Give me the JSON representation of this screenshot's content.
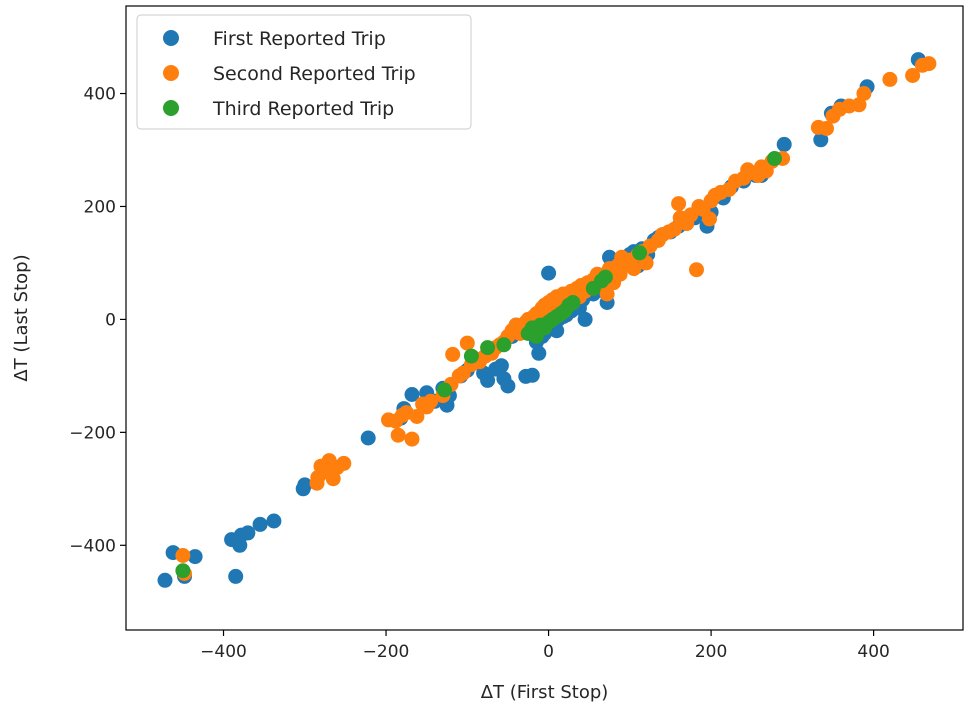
{
  "chart_data": {
    "type": "scatter",
    "title": "",
    "xlabel": "ΔT (First Stop)",
    "ylabel": "ΔT (Last Stop)",
    "xlim": [
      -520,
      510
    ],
    "ylim": [
      -550,
      555
    ],
    "xticks": [
      -400,
      -200,
      0,
      200,
      400
    ],
    "yticks": [
      -400,
      -200,
      0,
      200,
      400
    ],
    "xtick_labels": [
      "−400",
      "−200",
      "0",
      "200",
      "400"
    ],
    "ytick_labels": [
      "−400",
      "−200",
      "0",
      "200",
      "400"
    ],
    "grid": false,
    "legend_position": "top-left",
    "series": [
      {
        "name": "First Reported Trip",
        "color": "#1f77b4",
        "points": [
          [
            -472,
            -462
          ],
          [
            -462,
            -413
          ],
          [
            -448,
            -455
          ],
          [
            -435,
            -420
          ],
          [
            -390,
            -390
          ],
          [
            -385,
            -455
          ],
          [
            -380,
            -400
          ],
          [
            -378,
            -382
          ],
          [
            -370,
            -378
          ],
          [
            -355,
            -363
          ],
          [
            -338,
            -357
          ],
          [
            -302,
            -300
          ],
          [
            -300,
            -293
          ],
          [
            -222,
            -210
          ],
          [
            -182,
            -175
          ],
          [
            -178,
            -158
          ],
          [
            -168,
            -133
          ],
          [
            -150,
            -130
          ],
          [
            -140,
            -145
          ],
          [
            -130,
            -122
          ],
          [
            -125,
            -152
          ],
          [
            -122,
            -135
          ],
          [
            -108,
            -100
          ],
          [
            -100,
            -90
          ],
          [
            -90,
            -70
          ],
          [
            -80,
            -95
          ],
          [
            -75,
            -108
          ],
          [
            -70,
            -55
          ],
          [
            -65,
            -88
          ],
          [
            -58,
            -82
          ],
          [
            -55,
            -105
          ],
          [
            -50,
            -118
          ],
          [
            -45,
            -30
          ],
          [
            -40,
            -10
          ],
          [
            -35,
            -20
          ],
          [
            -28,
            -101
          ],
          [
            -25,
            -18
          ],
          [
            -20,
            -99
          ],
          [
            -15,
            -40
          ],
          [
            -12,
            -60
          ],
          [
            -8,
            -30
          ],
          [
            -5,
            -25
          ],
          [
            0,
            82
          ],
          [
            2,
            5
          ],
          [
            5,
            -10
          ],
          [
            8,
            -5
          ],
          [
            10,
            -20
          ],
          [
            12,
            0
          ],
          [
            15,
            10
          ],
          [
            18,
            5
          ],
          [
            20,
            20
          ],
          [
            22,
            8
          ],
          [
            25,
            25
          ],
          [
            28,
            15
          ],
          [
            30,
            30
          ],
          [
            35,
            40
          ],
          [
            38,
            20
          ],
          [
            40,
            50
          ],
          [
            42,
            35
          ],
          [
            45,
            0
          ],
          [
            50,
            60
          ],
          [
            52,
            55
          ],
          [
            55,
            45
          ],
          [
            58,
            65
          ],
          [
            60,
            70
          ],
          [
            62,
            60
          ],
          [
            65,
            75
          ],
          [
            68,
            50
          ],
          [
            70,
            80
          ],
          [
            72,
            30
          ],
          [
            75,
            110
          ],
          [
            78,
            95
          ],
          [
            80,
            85
          ],
          [
            85,
            90
          ],
          [
            88,
            100
          ],
          [
            92,
            105
          ],
          [
            95,
            110
          ],
          [
            100,
            115
          ],
          [
            105,
            120
          ],
          [
            110,
            95
          ],
          [
            115,
            125
          ],
          [
            118,
            105
          ],
          [
            122,
            115
          ],
          [
            130,
            140
          ],
          [
            135,
            145
          ],
          [
            140,
            150
          ],
          [
            150,
            155
          ],
          [
            160,
            165
          ],
          [
            170,
            170
          ],
          [
            180,
            180
          ],
          [
            195,
            165
          ],
          [
            200,
            190
          ],
          [
            215,
            215
          ],
          [
            225,
            235
          ],
          [
            240,
            245
          ],
          [
            255,
            255
          ],
          [
            262,
            255
          ],
          [
            290,
            310
          ],
          [
            335,
            318
          ],
          [
            348,
            365
          ],
          [
            360,
            378
          ],
          [
            392,
            412
          ],
          [
            455,
            460
          ]
        ]
      },
      {
        "name": "Second Reported Trip",
        "color": "#ff7f0e",
        "points": [
          [
            -450,
            -418
          ],
          [
            -448,
            -450
          ],
          [
            -285,
            -290
          ],
          [
            -284,
            -280
          ],
          [
            -280,
            -260
          ],
          [
            -275,
            -270
          ],
          [
            -270,
            -250
          ],
          [
            -265,
            -282
          ],
          [
            -260,
            -262
          ],
          [
            -252,
            -255
          ],
          [
            -197,
            -178
          ],
          [
            -188,
            -180
          ],
          [
            -185,
            -205
          ],
          [
            -180,
            -170
          ],
          [
            -175,
            -165
          ],
          [
            -168,
            -212
          ],
          [
            -162,
            -172
          ],
          [
            -155,
            -150
          ],
          [
            -150,
            -155
          ],
          [
            -145,
            -145
          ],
          [
            -130,
            -135
          ],
          [
            -120,
            -115
          ],
          [
            -118,
            -62
          ],
          [
            -110,
            -100
          ],
          [
            -105,
            -95
          ],
          [
            -100,
            -42
          ],
          [
            -95,
            -80
          ],
          [
            -90,
            -70
          ],
          [
            -85,
            -75
          ],
          [
            -78,
            -65
          ],
          [
            -70,
            -60
          ],
          [
            -65,
            -50
          ],
          [
            -60,
            -45
          ],
          [
            -55,
            -40
          ],
          [
            -50,
            -30
          ],
          [
            -45,
            -20
          ],
          [
            -40,
            -10
          ],
          [
            -35,
            -25
          ],
          [
            -30,
            -15
          ],
          [
            -28,
            -5
          ],
          [
            -25,
            0
          ],
          [
            -20,
            -10
          ],
          [
            -18,
            5
          ],
          [
            -15,
            10
          ],
          [
            -12,
            -2
          ],
          [
            -10,
            15
          ],
          [
            -8,
            20
          ],
          [
            -5,
            25
          ],
          [
            -2,
            10
          ],
          [
            0,
            30
          ],
          [
            2,
            15
          ],
          [
            5,
            35
          ],
          [
            8,
            20
          ],
          [
            10,
            40
          ],
          [
            12,
            25
          ],
          [
            15,
            30
          ],
          [
            18,
            45
          ],
          [
            20,
            20
          ],
          [
            22,
            35
          ],
          [
            25,
            40
          ],
          [
            28,
            50
          ],
          [
            30,
            30
          ],
          [
            32,
            45
          ],
          [
            35,
            55
          ],
          [
            38,
            40
          ],
          [
            40,
            60
          ],
          [
            45,
            50
          ],
          [
            48,
            65
          ],
          [
            50,
            55
          ],
          [
            55,
            70
          ],
          [
            58,
            60
          ],
          [
            60,
            80
          ],
          [
            65,
            70
          ],
          [
            70,
            75
          ],
          [
            72,
            45
          ],
          [
            75,
            90
          ],
          [
            78,
            80
          ],
          [
            80,
            65
          ],
          [
            85,
            95
          ],
          [
            88,
            80
          ],
          [
            90,
            110
          ],
          [
            95,
            100
          ],
          [
            100,
            105
          ],
          [
            105,
            90
          ],
          [
            110,
            115
          ],
          [
            115,
            120
          ],
          [
            120,
            100
          ],
          [
            125,
            130
          ],
          [
            135,
            140
          ],
          [
            140,
            150
          ],
          [
            148,
            155
          ],
          [
            155,
            160
          ],
          [
            160,
            205
          ],
          [
            162,
            180
          ],
          [
            170,
            170
          ],
          [
            175,
            185
          ],
          [
            182,
            88
          ],
          [
            185,
            200
          ],
          [
            190,
            195
          ],
          [
            198,
            178
          ],
          [
            200,
            210
          ],
          [
            205,
            220
          ],
          [
            212,
            225
          ],
          [
            222,
            230
          ],
          [
            230,
            245
          ],
          [
            240,
            250
          ],
          [
            245,
            265
          ],
          [
            250,
            260
          ],
          [
            258,
            255
          ],
          [
            262,
            270
          ],
          [
            268,
            263
          ],
          [
            275,
            280
          ],
          [
            288,
            285
          ],
          [
            332,
            340
          ],
          [
            342,
            338
          ],
          [
            350,
            360
          ],
          [
            358,
            372
          ],
          [
            370,
            378
          ],
          [
            382,
            380
          ],
          [
            388,
            400
          ],
          [
            420,
            425
          ],
          [
            448,
            432
          ],
          [
            460,
            450
          ],
          [
            468,
            453
          ]
        ]
      },
      {
        "name": "Third Reported Trip",
        "color": "#2ca02c",
        "points": [
          [
            -450,
            -445
          ],
          [
            -128,
            -125
          ],
          [
            -95,
            -65
          ],
          [
            -75,
            -50
          ],
          [
            -55,
            -45
          ],
          [
            -25,
            -25
          ],
          [
            -20,
            -15
          ],
          [
            -15,
            -30
          ],
          [
            -10,
            -10
          ],
          [
            -5,
            -15
          ],
          [
            0,
            -5
          ],
          [
            5,
            0
          ],
          [
            10,
            5
          ],
          [
            15,
            10
          ],
          [
            20,
            15
          ],
          [
            25,
            25
          ],
          [
            30,
            30
          ],
          [
            55,
            55
          ],
          [
            65,
            68
          ],
          [
            70,
            75
          ],
          [
            112,
            118
          ],
          [
            278,
            285
          ]
        ]
      }
    ]
  }
}
